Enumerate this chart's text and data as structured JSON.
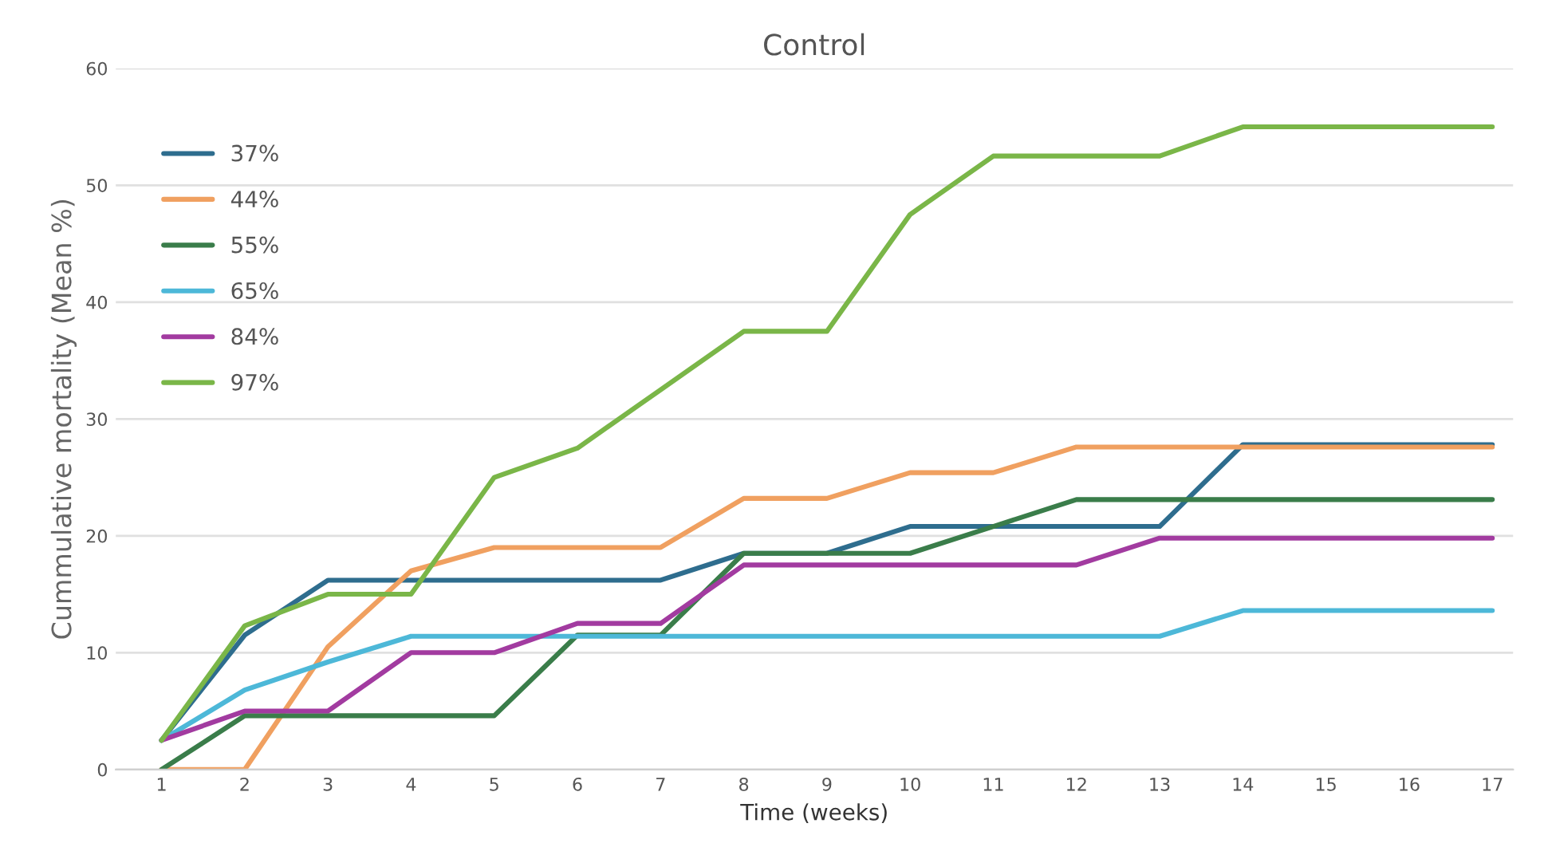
{
  "chart_data": {
    "type": "line",
    "title": "Control",
    "xlabel": "Time (weeks)",
    "ylabel": "Cummulative mortality (Mean %)",
    "x": [
      1,
      2,
      3,
      4,
      5,
      6,
      7,
      8,
      9,
      10,
      11,
      12,
      13,
      14,
      15,
      16,
      17
    ],
    "series": [
      {
        "name": "37%",
        "color": "#2e6d8e",
        "values": [
          2.5,
          11.5,
          16.2,
          16.2,
          16.2,
          16.2,
          16.2,
          18.5,
          18.5,
          20.8,
          20.8,
          20.8,
          20.8,
          27.8,
          27.8,
          27.8,
          27.8
        ]
      },
      {
        "name": "44%",
        "color": "#f0a060",
        "values": [
          0,
          0,
          10.5,
          17,
          19,
          19,
          19,
          23.2,
          23.2,
          25.4,
          25.4,
          27.6,
          27.6,
          27.6,
          27.6,
          27.6,
          27.6
        ]
      },
      {
        "name": "55%",
        "color": "#3a7d4a",
        "values": [
          0,
          4.6,
          4.6,
          4.6,
          4.6,
          11.5,
          11.5,
          18.5,
          18.5,
          18.5,
          20.8,
          23.1,
          23.1,
          23.1,
          23.1,
          23.1,
          23.1
        ]
      },
      {
        "name": "65%",
        "color": "#4db8d8",
        "values": [
          2.5,
          6.8,
          9.2,
          11.4,
          11.4,
          11.4,
          11.4,
          11.4,
          11.4,
          11.4,
          11.4,
          11.4,
          11.4,
          13.6,
          13.6,
          13.6,
          13.6
        ]
      },
      {
        "name": "84%",
        "color": "#a23ba0",
        "values": [
          2.5,
          5,
          5,
          10,
          10,
          12.5,
          12.5,
          17.5,
          17.5,
          17.5,
          17.5,
          17.5,
          19.8,
          19.8,
          19.8,
          19.8,
          19.8
        ]
      },
      {
        "name": "97%",
        "color": "#7ab648",
        "values": [
          2.5,
          12.3,
          15,
          15,
          25,
          27.5,
          32.5,
          37.5,
          37.5,
          47.5,
          52.5,
          52.5,
          52.5,
          55,
          55,
          55,
          55
        ]
      }
    ],
    "xlim": [
      0.45,
      17.25
    ],
    "xticks": [
      1,
      2,
      3,
      4,
      5,
      6,
      7,
      8,
      9,
      10,
      11,
      12,
      13,
      14,
      15,
      16,
      17
    ],
    "ylim": [
      0,
      60
    ],
    "yticks": [
      0,
      10,
      20,
      30,
      40,
      50,
      60
    ],
    "grid": "y",
    "legend": "top left",
    "marker": "none",
    "line_style": "solid"
  }
}
